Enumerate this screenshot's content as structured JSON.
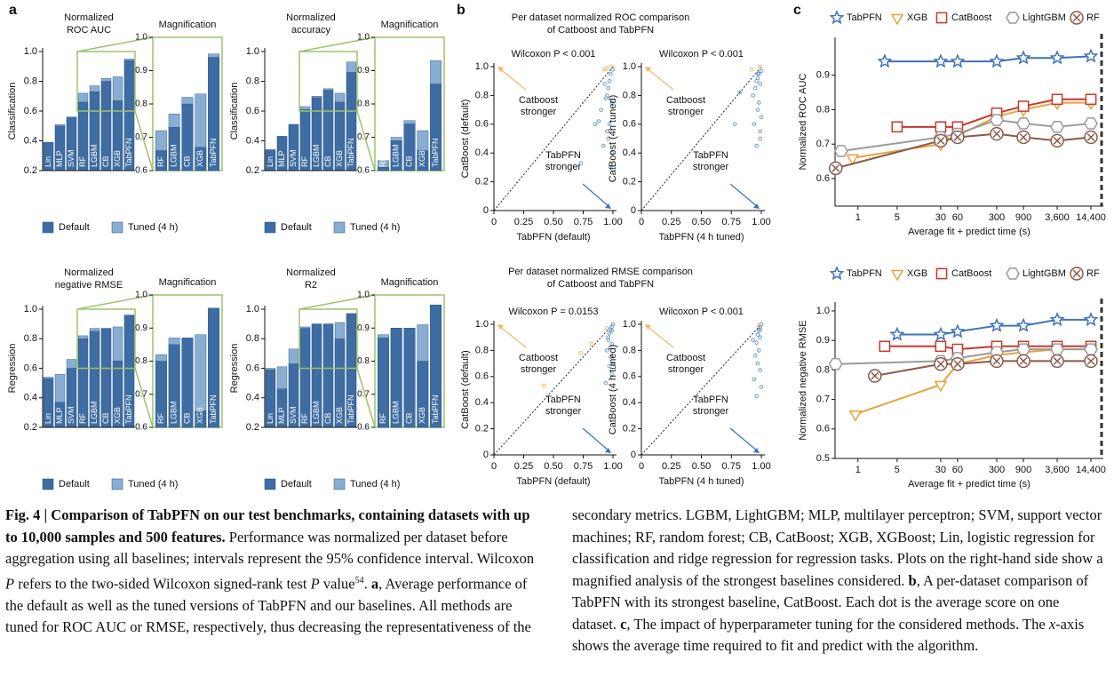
{
  "panels": [
    "a",
    "b",
    "c"
  ],
  "section_titles": [
    [
      "Per dataset normalized ROC comparison",
      "of Catboost and TabPFN"
    ],
    [
      "Per dataset normalized RMSE comparison",
      "of Catboost and TabPFN"
    ]
  ],
  "chart_data": [
    {
      "type": "bar",
      "title": [
        "Normalized",
        "ROC AUC"
      ],
      "ylabel": "Classification",
      "categories": [
        "Lin",
        "MLP",
        "SVM",
        "RF",
        "LGBM",
        "CB",
        "XGB",
        "TabPFN"
      ],
      "series": [
        {
          "name": "Default",
          "color": "#3d6da3",
          "values": [
            0.39,
            0.5,
            0.56,
            0.66,
            0.73,
            0.8,
            0.67,
            0.94
          ]
        },
        {
          "name": "Tuned (4 h)",
          "color": "#88aed3",
          "values": [
            0.39,
            0.51,
            0.56,
            0.72,
            0.77,
            0.82,
            0.83,
            0.95
          ]
        }
      ],
      "ylim": [
        0.2,
        1
      ],
      "yticks": [
        0.2,
        0.4,
        0.6,
        0.8,
        {
          "value": 1,
          "label": "1.0"
        }
      ],
      "inset": {
        "title": "Magnification",
        "ylim": [
          0.6,
          1
        ],
        "yticks": [
          0.6,
          0.7,
          0.8,
          0.9,
          {
            "value": 1,
            "label": "1.0"
          }
        ]
      }
    },
    {
      "type": "bar",
      "title": [
        "Normalized",
        "accuracy"
      ],
      "ylabel": "Classification",
      "categories": [
        "Lin",
        "MLP",
        "SVM",
        "RF",
        "LGBM",
        "CB",
        "XGB",
        "TabPFN"
      ],
      "series": [
        {
          "name": "Default",
          "color": "#3d6da3",
          "values": [
            0.34,
            0.43,
            0.51,
            0.61,
            0.69,
            0.74,
            0.66,
            0.86
          ]
        },
        {
          "name": "Tuned (4 h)",
          "color": "#88aed3",
          "values": [
            0.34,
            0.43,
            0.51,
            0.63,
            0.7,
            0.75,
            0.72,
            0.93
          ]
        }
      ],
      "ylim": [
        0.2,
        1
      ],
      "yticks": [
        0.2,
        0.4,
        0.6,
        0.8,
        {
          "value": 1,
          "label": "1.0"
        }
      ],
      "inset": {
        "title": "Magnification",
        "ylim": [
          0.6,
          1
        ],
        "yticks": [
          0.6,
          0.7,
          0.8,
          0.9,
          {
            "value": 1,
            "label": "1.0"
          }
        ]
      }
    },
    {
      "type": "bar",
      "title": [
        "Normalized",
        "negative RMSE"
      ],
      "ylabel": "Regression",
      "categories": [
        "Lin",
        "MLP",
        "SVM",
        "RF",
        "LGBM",
        "CB",
        "XGB",
        "TabPFN"
      ],
      "series": [
        {
          "name": "Default",
          "color": "#3d6da3",
          "values": [
            0.53,
            0.37,
            0.6,
            0.8,
            0.85,
            0.87,
            0.65,
            0.96
          ]
        },
        {
          "name": "Tuned (4 h)",
          "color": "#88aed3",
          "values": [
            0.54,
            0.56,
            0.66,
            0.82,
            0.87,
            0.87,
            0.88,
            0.96
          ]
        }
      ],
      "ylim": [
        0.2,
        1
      ],
      "yticks": [
        0.2,
        0.4,
        0.6,
        0.8,
        {
          "value": 1,
          "label": "1.0"
        }
      ],
      "inset": {
        "title": "Magnification",
        "ylim": [
          0.6,
          1
        ],
        "yticks": [
          0.6,
          0.7,
          0.8,
          0.9,
          {
            "value": 1,
            "label": "1.0"
          }
        ]
      }
    },
    {
      "type": "bar",
      "title": [
        "Normalized",
        "R2"
      ],
      "ylabel": "Regression",
      "categories": [
        "Lin",
        "MLP",
        "SVM",
        "RF",
        "LGBM",
        "CB",
        "XGB",
        "TabPFN"
      ],
      "series": [
        {
          "name": "Default",
          "color": "#3d6da3",
          "values": [
            0.59,
            0.46,
            0.63,
            0.87,
            0.9,
            0.9,
            0.8,
            0.97
          ]
        },
        {
          "name": "Tuned (4 h)",
          "color": "#88aed3",
          "values": [
            0.6,
            0.61,
            0.73,
            0.88,
            0.9,
            0.9,
            0.91,
            0.97
          ]
        }
      ],
      "ylim": [
        0.2,
        1
      ],
      "yticks": [
        0.2,
        0.4,
        0.6,
        0.8,
        {
          "value": 1,
          "label": "1.0"
        }
      ],
      "inset": {
        "title": "Magnification",
        "ylim": [
          0.6,
          1
        ],
        "yticks": [
          0.6,
          0.7,
          0.8,
          0.9,
          {
            "value": 1,
            "label": "1.0"
          }
        ]
      }
    },
    {
      "type": "scatter",
      "annotation": "Wilcoxon P < 0.001",
      "xlabel": "TabPFN (default)",
      "ylabel": "CatBoost (default)",
      "labels": [
        [
          "Catboost",
          "stronger"
        ],
        [
          "TabPFN",
          "stronger"
        ]
      ],
      "colors": {
        "above": "#f2b765",
        "below": "#6b9bd0"
      },
      "x": [
        0.99,
        0.98,
        0.97,
        0.96,
        0.95,
        0.99,
        1.0,
        0.93,
        0.9,
        0.97,
        0.95,
        0.92,
        0.99,
        0.98,
        0.85,
        0.96,
        0.88,
        0.94,
        0.73,
        0.93,
        0.95
      ],
      "y": [
        1.0,
        0.95,
        0.9,
        0.85,
        0.8,
        0.75,
        0.98,
        0.88,
        0.7,
        0.6,
        0.55,
        0.45,
        0.4,
        0.3,
        0.6,
        0.5,
        0.62,
        0.78,
        0.33,
        0.98,
        0.99
      ],
      "xlim": [
        0,
        1
      ],
      "xticks": [
        0,
        0.25,
        {
          "value": 0.5,
          "label": "0.50"
        },
        0.75,
        {
          "value": 1,
          "label": "1.00"
        }
      ],
      "ylim": [
        0,
        1
      ],
      "yticks": [
        0,
        0.2,
        0.4,
        0.6,
        0.8,
        {
          "value": 1,
          "label": "1.0"
        }
      ]
    },
    {
      "type": "scatter",
      "annotation": "Wilcoxon P < 0.001",
      "xlabel": "TabPFN (4 h tuned)",
      "ylabel": "CatBoost (4h tuned)",
      "labels": [
        [
          "Catboost",
          "stronger"
        ],
        [
          "TabPFN",
          "stronger"
        ]
      ],
      "colors": {
        "above": "#f2b765",
        "below": "#6b9bd0"
      },
      "x": [
        0.99,
        1.0,
        0.98,
        0.97,
        0.96,
        0.99,
        0.95,
        0.93,
        0.98,
        0.97,
        1.0,
        0.94,
        0.99,
        0.96,
        0.78,
        0.82,
        0.97,
        0.92,
        0.99
      ],
      "y": [
        1.0,
        0.97,
        0.95,
        0.92,
        0.9,
        0.88,
        0.85,
        0.8,
        0.75,
        0.7,
        0.65,
        0.6,
        0.55,
        0.45,
        0.6,
        0.82,
        0.95,
        0.98,
        0.5
      ],
      "xlim": [
        0,
        1
      ],
      "xticks": [
        0,
        0.25,
        {
          "value": 0.5,
          "label": "0.50"
        },
        0.75,
        {
          "value": 1,
          "label": "1.00"
        }
      ],
      "ylim": [
        0,
        1
      ],
      "yticks": [
        0,
        0.2,
        0.4,
        0.6,
        0.8,
        {
          "value": 1,
          "label": "1.0"
        }
      ]
    },
    {
      "type": "scatter",
      "annotation": "Wilcoxon P = 0.0153",
      "xlabel": "TabPFN (default)",
      "ylabel": "CatBoost (default)",
      "labels": [
        [
          "Catboost",
          "stronger"
        ],
        [
          "TabPFN",
          "stronger"
        ]
      ],
      "colors": {
        "above": "#f2b765",
        "below": "#6b9bd0"
      },
      "x": [
        1.0,
        0.99,
        0.98,
        0.97,
        0.96,
        0.99,
        0.95,
        0.98,
        0.97,
        0.99,
        0.94,
        1.0,
        0.96,
        0.42,
        0.73,
        0.82,
        0.95,
        0.99
      ],
      "y": [
        1.0,
        0.98,
        0.96,
        0.93,
        0.9,
        0.85,
        0.8,
        0.75,
        0.68,
        0.62,
        0.55,
        0.7,
        0.88,
        0.53,
        0.78,
        0.85,
        0.97,
        0.95
      ],
      "xlim": [
        0,
        1
      ],
      "xticks": [
        0,
        0.25,
        {
          "value": 0.5,
          "label": "0.50"
        },
        0.75,
        {
          "value": 1,
          "label": "1.00"
        }
      ],
      "ylim": [
        0,
        1
      ],
      "yticks": [
        0,
        0.2,
        0.4,
        0.6,
        0.8,
        {
          "value": 1,
          "label": "1.0"
        }
      ]
    },
    {
      "type": "scatter",
      "annotation": "Wilcoxon P < 0.001",
      "xlabel": "TabPFN (4 h tuned)",
      "ylabel": "CatBoost (4 h tuned)",
      "labels": [
        [
          "Catboost",
          "stronger"
        ],
        [
          "TabPFN",
          "stronger"
        ]
      ],
      "colors": {
        "above": "#f2b765",
        "below": "#6b9bd0"
      },
      "x": [
        1.0,
        0.99,
        0.98,
        0.97,
        0.99,
        0.96,
        0.98,
        0.95,
        0.97,
        0.99,
        0.94,
        1.0,
        0.96,
        0.93,
        0.98,
        0.99
      ],
      "y": [
        1.0,
        0.98,
        0.95,
        0.92,
        0.9,
        0.86,
        0.8,
        0.76,
        0.7,
        0.65,
        0.58,
        0.52,
        0.45,
        0.88,
        0.99,
        0.96
      ],
      "xlim": [
        0,
        1
      ],
      "xticks": [
        0,
        0.25,
        {
          "value": 0.5,
          "label": "0.50"
        },
        0.75,
        {
          "value": 1,
          "label": "1.00"
        }
      ],
      "ylim": [
        0,
        1
      ],
      "yticks": [
        0,
        0.2,
        0.4,
        0.6,
        0.8,
        {
          "value": 1,
          "label": "1.0"
        }
      ]
    },
    {
      "type": "line",
      "log_x": true,
      "xlabel": "Average fit + predict time (s)",
      "ylabel": "Normalized ROC AUC",
      "series": [
        {
          "name": "TabPFN",
          "color": "#3e73b8",
          "marker": "star",
          "x": [
            3,
            30,
            60,
            300,
            900,
            3600,
            14400
          ],
          "values": [
            0.94,
            0.94,
            0.94,
            0.94,
            0.95,
            0.95,
            0.955
          ]
        },
        {
          "name": "XGB",
          "color": "#e8a33a",
          "marker": "triangle",
          "x": [
            0.8,
            30,
            300,
            900,
            3600,
            14400
          ],
          "values": [
            0.66,
            0.7,
            0.78,
            0.8,
            0.82,
            0.82
          ]
        },
        {
          "name": "CatBoost",
          "color": "#c8392e",
          "marker": "square",
          "x": [
            5,
            30,
            60,
            300,
            900,
            3600,
            14400
          ],
          "values": [
            0.75,
            0.75,
            0.75,
            0.79,
            0.81,
            0.83,
            0.83
          ]
        },
        {
          "name": "LightGBM",
          "color": "#9a9a9a",
          "marker": "hexagon",
          "x": [
            0.5,
            30,
            60,
            300,
            900,
            3600,
            14400
          ],
          "values": [
            0.68,
            0.72,
            0.73,
            0.77,
            0.76,
            0.75,
            0.76
          ]
        },
        {
          "name": "RF",
          "color": "#8a5a4a",
          "marker": "xcircle",
          "x": [
            0.4,
            30,
            60,
            300,
            900,
            3600,
            14400
          ],
          "values": [
            0.63,
            0.71,
            0.72,
            0.73,
            0.72,
            0.71,
            0.72
          ]
        }
      ],
      "xlim": [
        0.39,
        24000
      ],
      "xticks": [
        1,
        5,
        30,
        60,
        300,
        900,
        {
          "value": 3600,
          "label": "3,600"
        },
        {
          "value": 14400,
          "label": "14,400"
        }
      ],
      "ylim": [
        0.52,
        1.01
      ],
      "yticks": [
        0.6,
        0.7,
        0.8,
        0.9
      ]
    },
    {
      "type": "line",
      "log_x": true,
      "xlabel": "Average fit + predict time (s)",
      "ylabel": "Normalized negative RMSE",
      "series": [
        {
          "name": "TabPFN",
          "color": "#3e73b8",
          "marker": "star",
          "x": [
            5,
            30,
            60,
            300,
            900,
            3600,
            14400
          ],
          "values": [
            0.92,
            0.92,
            0.93,
            0.95,
            0.95,
            0.97,
            0.97
          ]
        },
        {
          "name": "XGB",
          "color": "#e8a33a",
          "marker": "triangle",
          "x": [
            0.9,
            30,
            60,
            300,
            900,
            3600,
            14400
          ],
          "values": [
            0.65,
            0.75,
            0.82,
            0.85,
            0.86,
            0.87,
            0.87
          ]
        },
        {
          "name": "CatBoost",
          "color": "#c8392e",
          "marker": "square",
          "x": [
            3,
            30,
            60,
            300,
            900,
            3600,
            14400
          ],
          "values": [
            0.88,
            0.88,
            0.87,
            0.88,
            0.88,
            0.88,
            0.88
          ]
        },
        {
          "name": "LightGBM",
          "color": "#9a9a9a",
          "marker": "hexagon",
          "x": [
            0.4,
            30,
            60,
            300,
            900,
            3600,
            14400
          ],
          "values": [
            0.82,
            0.83,
            0.84,
            0.86,
            0.87,
            0.87,
            0.87
          ]
        },
        {
          "name": "RF",
          "color": "#8a5a4a",
          "marker": "xcircle",
          "x": [
            2,
            30,
            60,
            300,
            900,
            3600,
            14400
          ],
          "values": [
            0.78,
            0.82,
            0.82,
            0.83,
            0.83,
            0.83,
            0.83
          ]
        }
      ],
      "xlim": [
        0.39,
        24000
      ],
      "xticks": [
        1,
        5,
        30,
        60,
        300,
        900,
        {
          "value": 3600,
          "label": "3,600"
        },
        {
          "value": 14400,
          "label": "14,400"
        }
      ],
      "ylim": [
        0.5,
        1.03
      ],
      "yticks": [
        0.5,
        0.6,
        0.7,
        0.8,
        0.9,
        {
          "value": 1,
          "label": "1.0"
        }
      ]
    }
  ],
  "caption": [
    {
      "text": "Fig. 4 | Comparison of TabPFN on our test benchmarks, containing datasets with up to 10,000 samples and 500 features.",
      "style": "bold"
    },
    {
      "text": " Performance was normalized per dataset before aggregation using all baselines; intervals represent the 95% confidence interval. Wilcoxon ",
      "style": "normal"
    },
    {
      "text": "P",
      "style": "italic"
    },
    {
      "text": " refers to the two-sided Wilcoxon signed-rank test ",
      "style": "normal"
    },
    {
      "text": "P",
      "style": "italic"
    },
    {
      "text": " value",
      "style": "normal"
    },
    {
      "text": "54",
      "style": "sup"
    },
    {
      "text": ". ",
      "style": "normal"
    },
    {
      "text": "a",
      "style": "bold"
    },
    {
      "text": ", Average performance of the default as well as the tuned versions of TabPFN and our baselines. All methods are tuned for ROC AUC or RMSE, respectively, thus decreasing the representativeness of the secondary metrics. LGBM, LightGBM; MLP, multilayer perceptron; SVM, support vector machines; RF, random forest; CB, CatBoost; XGB, XGBoost; Lin, logistic regression for classification and ridge regression for regression tasks. Plots on the right-hand side show a magnified analysis of the strongest baselines considered. ",
      "style": "normal"
    },
    {
      "text": "b",
      "style": "bold"
    },
    {
      "text": ", A per-dataset comparison of TabPFN with its strongest baseline, CatBoost. Each dot is the average score on one dataset. ",
      "style": "normal"
    },
    {
      "text": "c",
      "style": "bold"
    },
    {
      "text": ", The impact of hyperparameter tuning for the considered methods. The ",
      "style": "normal"
    },
    {
      "text": "x",
      "style": "italic"
    },
    {
      "text": "-axis shows the average time required to fit and predict with the algorithm.",
      "style": "normal"
    }
  ]
}
